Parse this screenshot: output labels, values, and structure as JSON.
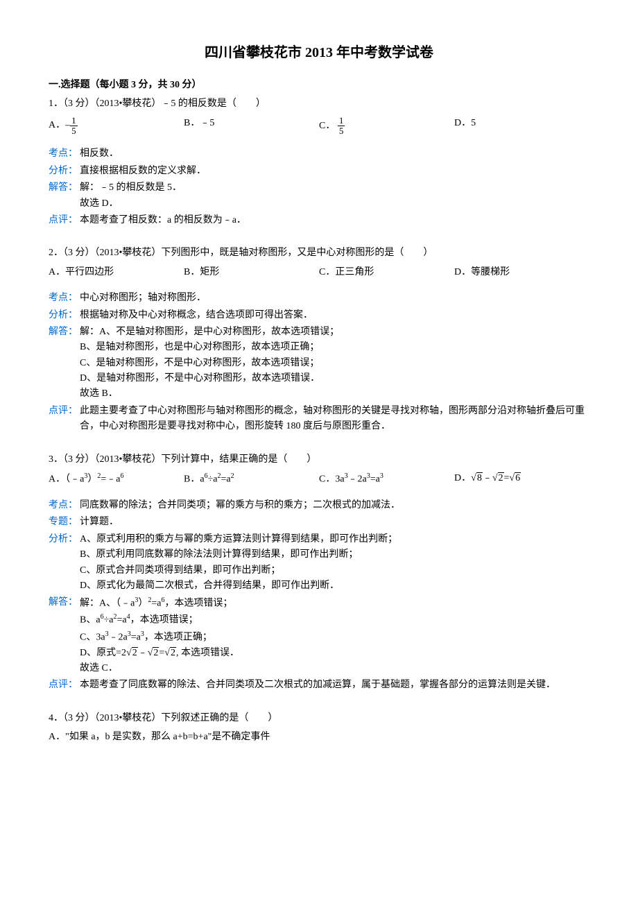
{
  "title": "四川省攀枝花市 2013 年中考数学试卷",
  "section1_header": "一.选择题（每小题 3 分，共 30 分）",
  "q1": {
    "text": "1．（3 分）（2013•攀枝花）﹣5 的相反数是（　　）",
    "optA_prefix": "A．",
    "optA_neg": "–",
    "optA_num": "1",
    "optA_den": "5",
    "optB": "B．﹣5",
    "optC_prefix": "C．",
    "optC_num": "1",
    "optC_den": "5",
    "optD": "D．5",
    "kaodian_label": "考点：",
    "kaodian": "相反数．",
    "fenxi_label": "分析：",
    "fenxi": "直接根据相反数的定义求解．",
    "jieda_label": "解答：",
    "jieda1": "解：﹣5 的相反数是 5．",
    "jieda2": "故选 D．",
    "dianping_label": "点评：",
    "dianping": "本题考查了相反数：a 的相反数为﹣a．"
  },
  "q2": {
    "text": "2．（3 分）（2013•攀枝花）下列图形中，既是轴对称图形，又是中心对称图形的是（　　）",
    "optA": "A．平行四边形",
    "optB": "B．矩形",
    "optC": "C．正三角形",
    "optD": "D．等腰梯形",
    "kaodian_label": "考点：",
    "kaodian": "中心对称图形；轴对称图形．",
    "fenxi_label": "分析：",
    "fenxi": "根据轴对称及中心对称概念，结合选项即可得出答案．",
    "jieda_label": "解答：",
    "jieda1": "解：A、不是轴对称图形，是中心对称图形，故本选项错误；",
    "jieda2": "B、是轴对称图形，也是中心对称图形，故本选项正确；",
    "jieda3": "C、是轴对称图形，不是中心对称图形，故本选项错误；",
    "jieda4": "D、是轴对称图形，不是中心对称图形，故本选项错误．",
    "jieda5": "故选 B．",
    "dianping_label": "点评：",
    "dianping": "此题主要考查了中心对称图形与轴对称图形的概念，轴对称图形的关键是寻找对称轴，图形两部分沿对称轴折叠后可重合，中心对称图形是要寻找对称中心，图形旋转 180 度后与原图形重合．"
  },
  "q3": {
    "text": "3．（3 分）（2013•攀枝花）下列计算中，结果正确的是（　　）",
    "optA_pre": "A．（﹣a",
    "optA_sup1": "3",
    "optA_mid": "）",
    "optA_sup2": "2",
    "optA_post": "=﹣a",
    "optA_sup3": "6",
    "optB_pre": "B．a",
    "optB_sup1": "6",
    "optB_mid": "÷a",
    "optB_sup2": "2",
    "optB_post": "=a",
    "optB_sup3": "2",
    "optC_pre": "C．3a",
    "optC_sup1": "3",
    "optC_mid": "﹣2a",
    "optC_sup2": "3",
    "optC_post": "=a",
    "optC_sup3": "3",
    "optD_pre": "D．",
    "optD_r1": "8",
    "optD_mid": "﹣",
    "optD_r2": "2",
    "optD_eq": "=",
    "optD_r3": "6",
    "kaodian_label": "考点：",
    "kaodian": "同底数幂的除法；合并同类项；幂的乘方与积的乘方；二次根式的加减法．",
    "zhuanti_label": "专题：",
    "zhuanti": "计算题．",
    "fenxi_label": "分析：",
    "fenxi1": "A、原式利用积的乘方与幂的乘方运算法则计算得到结果，即可作出判断；",
    "fenxi2": "B、原式利用同底数幂的除法法则计算得到结果，即可作出判断；",
    "fenxi3": "C、原式合并同类项得到结果，即可作出判断；",
    "fenxi4": "D、原式化为最简二次根式，合并得到结果，即可作出判断．",
    "jieda_label": "解答：",
    "jieda1_pre": "解：A、（﹣a",
    "jieda1_sup1": "3",
    "jieda1_mid": "）",
    "jieda1_sup2": "2",
    "jieda1_post": "=a",
    "jieda1_sup3": "6",
    "jieda1_end": "，本选项错误；",
    "jieda2_pre": "B、a",
    "jieda2_sup1": "6",
    "jieda2_mid": "÷a",
    "jieda2_sup2": "2",
    "jieda2_post": "=a",
    "jieda2_sup3": "4",
    "jieda2_end": "，本选项错误；",
    "jieda3_pre": "C、3a",
    "jieda3_sup1": "3",
    "jieda3_mid": "﹣2a",
    "jieda3_sup2": "3",
    "jieda3_post": "=a",
    "jieda3_sup3": "3",
    "jieda3_end": "，本选项正确；",
    "jieda4_pre": "D、原式=2",
    "jieda4_r1": "2",
    "jieda4_mid": "﹣",
    "jieda4_r2": "2",
    "jieda4_eq": "=",
    "jieda4_r3": "2",
    "jieda4_end": ", 本选项错误．",
    "jieda5": "故选 C．",
    "dianping_label": "点评：",
    "dianping": "本题考查了同底数幂的除法、合并同类项及二次根式的加减运算，属于基础题，掌握各部分的运算法则是关键．"
  },
  "q4": {
    "text": "4．（3 分）（2013•攀枝花）下列叙述正确的是（　　）",
    "optA": "A．\"如果 a，b 是实数，那么 a+b=b+a\"是不确定事件"
  }
}
